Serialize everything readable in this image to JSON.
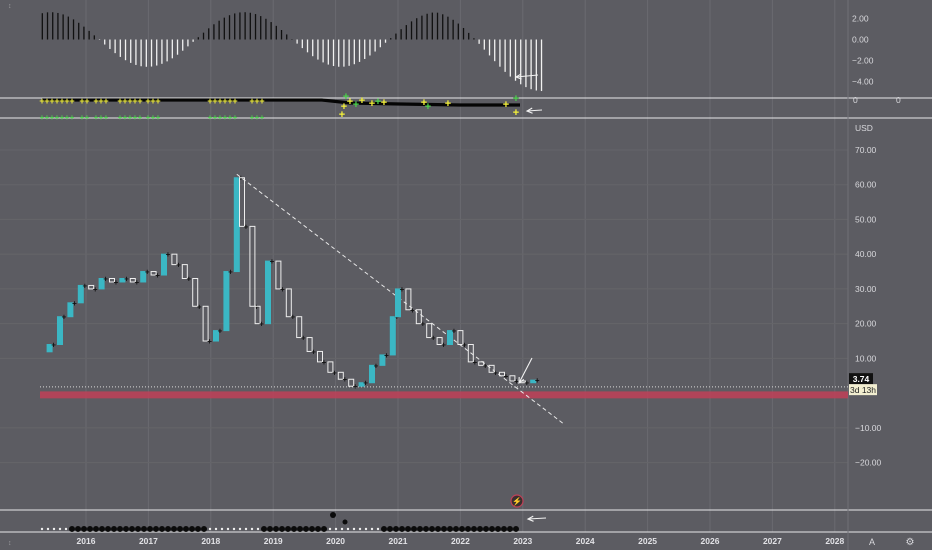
{
  "chart_data": {
    "type": "candlestick",
    "currency_label": "USD",
    "x_ticks": [
      "2016",
      "2017",
      "2018",
      "2019",
      "2020",
      "2021",
      "2022",
      "2023",
      "2024",
      "2025",
      "2026",
      "2027",
      "2028"
    ],
    "price_axis": {
      "ticks": [
        "70.00",
        "60.00",
        "50.00",
        "40.00",
        "30.00",
        "20.00",
        "10.00",
        "−10.00",
        "−20.00"
      ],
      "ylim": [
        -25,
        72
      ]
    },
    "last_price": "3.74",
    "countdown": "3d 13h",
    "oscillator_axis": {
      "ticks": [
        "2.00",
        "0.00",
        "−2.00",
        "−4.00"
      ],
      "ylim": [
        -5,
        3
      ]
    },
    "signal_pane_labels": [
      "0",
      "0"
    ],
    "corner_labels": [
      "A",
      "⚙"
    ],
    "monthly_closes": [
      {
        "x": "2015-06",
        "y": 14
      },
      {
        "x": "2015-08",
        "y": 22
      },
      {
        "x": "2015-10",
        "y": 26
      },
      {
        "x": "2015-12",
        "y": 31
      },
      {
        "x": "2016-02",
        "y": 30
      },
      {
        "x": "2016-04",
        "y": 33
      },
      {
        "x": "2016-06",
        "y": 32
      },
      {
        "x": "2016-08",
        "y": 33
      },
      {
        "x": "2016-10",
        "y": 32
      },
      {
        "x": "2016-12",
        "y": 35
      },
      {
        "x": "2017-02",
        "y": 34
      },
      {
        "x": "2017-04",
        "y": 40
      },
      {
        "x": "2017-06",
        "y": 37
      },
      {
        "x": "2017-08",
        "y": 33
      },
      {
        "x": "2017-10",
        "y": 25
      },
      {
        "x": "2017-12",
        "y": 15
      },
      {
        "x": "2018-02",
        "y": 18
      },
      {
        "x": "2018-04",
        "y": 35
      },
      {
        "x": "2018-06",
        "y": 62
      },
      {
        "x": "2018-07",
        "y": 48
      },
      {
        "x": "2018-09",
        "y": 25
      },
      {
        "x": "2018-10",
        "y": 20
      },
      {
        "x": "2018-12",
        "y": 38
      },
      {
        "x": "2019-02",
        "y": 30
      },
      {
        "x": "2019-04",
        "y": 22
      },
      {
        "x": "2019-06",
        "y": 16
      },
      {
        "x": "2019-08",
        "y": 12
      },
      {
        "x": "2019-10",
        "y": 9
      },
      {
        "x": "2019-12",
        "y": 6
      },
      {
        "x": "2020-02",
        "y": 4
      },
      {
        "x": "2020-04",
        "y": 2
      },
      {
        "x": "2020-06",
        "y": 3
      },
      {
        "x": "2020-08",
        "y": 8
      },
      {
        "x": "2020-10",
        "y": 11
      },
      {
        "x": "2020-12",
        "y": 22
      },
      {
        "x": "2021-01",
        "y": 30
      },
      {
        "x": "2021-03",
        "y": 24
      },
      {
        "x": "2021-05",
        "y": 20
      },
      {
        "x": "2021-07",
        "y": 16
      },
      {
        "x": "2021-09",
        "y": 14
      },
      {
        "x": "2021-11",
        "y": 18
      },
      {
        "x": "2022-01",
        "y": 14
      },
      {
        "x": "2022-03",
        "y": 9
      },
      {
        "x": "2022-05",
        "y": 8
      },
      {
        "x": "2022-07",
        "y": 6
      },
      {
        "x": "2022-09",
        "y": 5
      },
      {
        "x": "2022-11",
        "y": 3.5
      },
      {
        "x": "2023-01",
        "y": 3
      },
      {
        "x": "2023-03",
        "y": 3.74
      }
    ],
    "trendline": {
      "from": {
        "x": "2018-06",
        "y": 63
      },
      "to": {
        "x": "2023-09",
        "y": -9
      }
    },
    "support_zone": [
      -1.5,
      0.5
    ],
    "colors": {
      "up": "#3bb7c4",
      "down": "#eeeeee",
      "background": "#5c5c62",
      "zone": "#c04058",
      "marker_yellow": "#f4f13a",
      "marker_green": "#4bd14b"
    }
  }
}
